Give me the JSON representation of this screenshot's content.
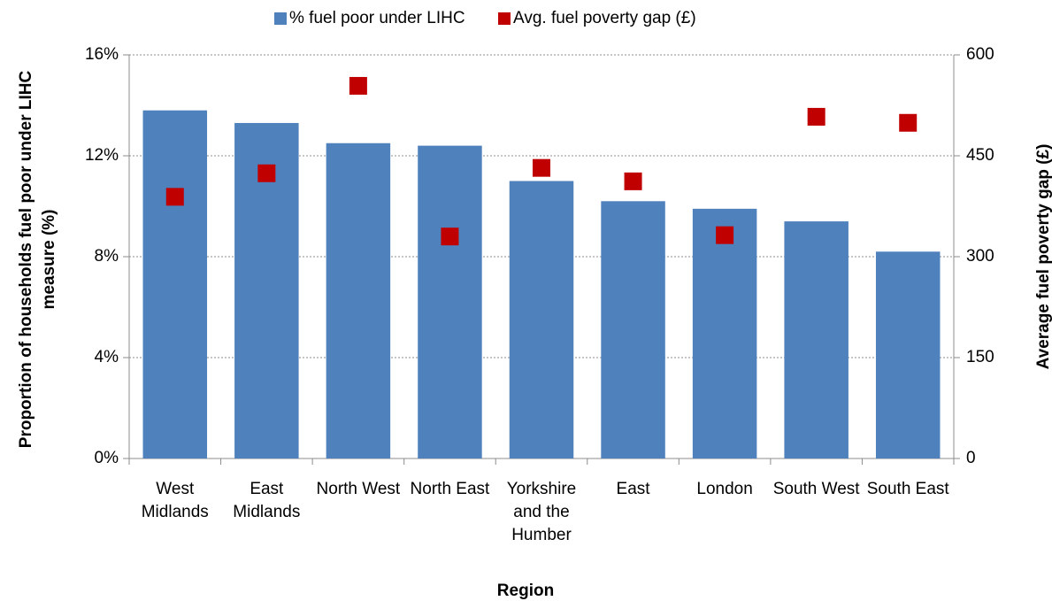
{
  "chart_data": {
    "type": "bar",
    "x_label": "Region",
    "y_label": "Proportion of households fuel poor under LIHC measure (%)",
    "y2_label": "Average fuel poverty gap (£)",
    "categories": [
      "West Midlands",
      "East Midlands",
      "North West",
      "North East",
      "Yorkshire and the Humber",
      "East",
      "London",
      "South West",
      "South East"
    ],
    "series": [
      {
        "name": "% fuel poor under LIHC",
        "type": "bar",
        "color": "#4f81bd",
        "values": [
          13.8,
          13.3,
          12.5,
          12.4,
          11.0,
          10.2,
          9.9,
          9.4,
          8.2
        ]
      },
      {
        "name": "Avg. fuel poverty gap (£)",
        "type": "scatter",
        "color": "#c00000",
        "axis": "y2",
        "values": [
          389,
          424,
          554,
          330,
          432,
          412,
          332,
          508,
          499
        ]
      }
    ],
    "ylim": [
      0,
      16
    ],
    "yticks": [
      {
        "value": 0,
        "label": "0%"
      },
      {
        "value": 4,
        "label": "4%"
      },
      {
        "value": 8,
        "label": "8%"
      },
      {
        "value": 12,
        "label": "12%"
      },
      {
        "value": 16,
        "label": "16%"
      }
    ],
    "y2lim": [
      0,
      600
    ],
    "y2ticks": [
      0,
      150,
      300,
      450,
      600
    ],
    "grid": true,
    "legend": "top"
  }
}
